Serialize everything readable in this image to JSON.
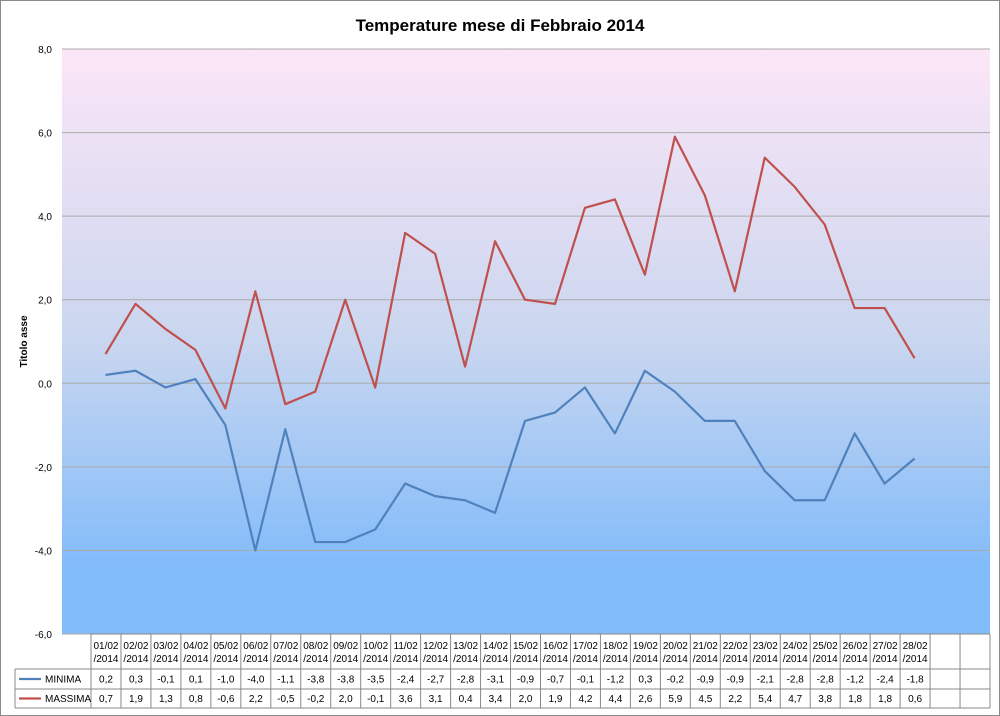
{
  "chart_data": {
    "type": "line",
    "title": "Temperature mese di Febbraio 2014",
    "ylabel": "Titolo asse",
    "ylim": [
      -6,
      8
    ],
    "yticks": [
      "-6,0",
      "-4,0",
      "-2,0",
      "0,0",
      "2,0",
      "4,0",
      "6,0",
      "8,0"
    ],
    "categories": [
      [
        "01/02",
        "/2014"
      ],
      [
        "02/02",
        "/2014"
      ],
      [
        "03/02",
        "/2014"
      ],
      [
        "04/02",
        "/2014"
      ],
      [
        "05/02",
        "/2014"
      ],
      [
        "06/02",
        "/2014"
      ],
      [
        "07/02",
        "/2014"
      ],
      [
        "08/02",
        "/2014"
      ],
      [
        "09/02",
        "/2014"
      ],
      [
        "10/02",
        "/2014"
      ],
      [
        "11/02",
        "/2014"
      ],
      [
        "12/02",
        "/2014"
      ],
      [
        "13/02",
        "/2014"
      ],
      [
        "14/02",
        "/2014"
      ],
      [
        "15/02",
        "/2014"
      ],
      [
        "16/02",
        "/2014"
      ],
      [
        "17/02",
        "/2014"
      ],
      [
        "18/02",
        "/2014"
      ],
      [
        "19/02",
        "/2014"
      ],
      [
        "20/02",
        "/2014"
      ],
      [
        "21/02",
        "/2014"
      ],
      [
        "22/02",
        "/2014"
      ],
      [
        "23/02",
        "/2014"
      ],
      [
        "24/02",
        "/2014"
      ],
      [
        "25/02",
        "/2014"
      ],
      [
        "26/02",
        "/2014"
      ],
      [
        "27/02",
        "/2014"
      ],
      [
        "28/02",
        "/2014"
      ],
      [
        "",
        ""
      ],
      [
        "",
        ""
      ],
      [
        "",
        ""
      ]
    ],
    "grid": true,
    "legend": "data-table",
    "series": [
      {
        "name": "MINIMA",
        "color": "#4f81bd",
        "values": [
          0.2,
          0.3,
          -0.1,
          0.1,
          -1.0,
          -4.0,
          -1.1,
          -3.8,
          -3.8,
          -3.5,
          -2.4,
          -2.7,
          -2.8,
          -3.1,
          -0.9,
          -0.7,
          -0.1,
          -1.2,
          0.3,
          -0.2,
          -0.9,
          -0.9,
          -2.1,
          -2.8,
          -2.8,
          -1.2,
          -2.4,
          -1.8,
          null,
          null,
          null
        ],
        "table_values": [
          "0,2",
          "0,3",
          "-0,1",
          "0,1",
          "-1,0",
          "-4,0",
          "-1,1",
          "-3,8",
          "-3,8",
          "-3,5",
          "-2,4",
          "-2,7",
          "-2,8",
          "-3,1",
          "-0,9",
          "-0,7",
          "-0,1",
          "-1,2",
          "0,3",
          "-0,2",
          "-0,9",
          "-0,9",
          "-2,1",
          "-2,8",
          "-2,8",
          "-1,2",
          "-2,4",
          "-1,8",
          "",
          "",
          ""
        ]
      },
      {
        "name": "MASSIMA",
        "color": "#c0504d",
        "values": [
          0.7,
          1.9,
          1.3,
          0.8,
          -0.6,
          2.2,
          -0.5,
          -0.2,
          2.0,
          -0.1,
          3.6,
          3.1,
          0.4,
          3.4,
          2.0,
          1.9,
          4.2,
          4.4,
          2.6,
          5.9,
          4.5,
          2.2,
          5.4,
          4.7,
          3.8,
          1.8,
          1.8,
          0.6,
          null,
          null,
          null
        ],
        "table_values": [
          "0,7",
          "1,9",
          "1,3",
          "0,8",
          "-0,6",
          "2,2",
          "-0,5",
          "-0,2",
          "2,0",
          "-0,1",
          "3,6",
          "3,1",
          "0,4",
          "3,4",
          "2,0",
          "1,9",
          "4,2",
          "4,4",
          "2,6",
          "5,9",
          "4,5",
          "2,2",
          "5,4",
          "4,7",
          "3,8",
          "1,8",
          "1,8",
          "0,6",
          "",
          "",
          ""
        ]
      }
    ],
    "colors": {
      "plot_top": "#fce6f7",
      "plot_mid": "#c9d6ef",
      "plot_bottom": "#83bcfa",
      "gridline": "#aaaaaa",
      "table_border": "#888888"
    }
  }
}
